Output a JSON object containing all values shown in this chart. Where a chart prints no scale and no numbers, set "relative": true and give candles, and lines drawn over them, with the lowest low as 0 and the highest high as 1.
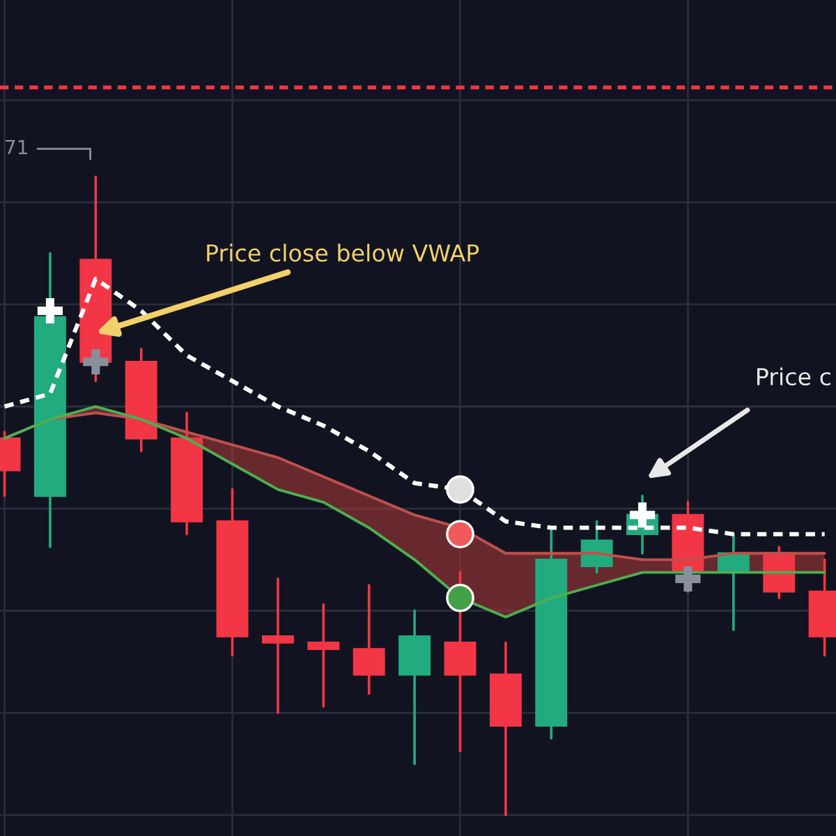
{
  "chart_data": {
    "type": "candlestick",
    "relative": true,
    "grid": true,
    "categories": [
      null,
      null,
      null,
      null,
      null,
      null,
      null,
      null,
      null,
      null,
      null,
      null,
      null,
      null,
      null,
      null,
      null,
      null,
      null
    ],
    "ohlc": [
      [
        0.59,
        0.6,
        0.5,
        0.54
      ],
      [
        0.5,
        0.88,
        0.42,
        0.78
      ],
      [
        0.87,
        1.0,
        0.68,
        0.71
      ],
      [
        0.71,
        0.73,
        0.57,
        0.59
      ],
      [
        0.59,
        0.63,
        0.44,
        0.46
      ],
      [
        0.46,
        0.51,
        0.25,
        0.28
      ],
      [
        0.28,
        0.37,
        0.16,
        0.27
      ],
      [
        0.27,
        0.33,
        0.17,
        0.26
      ],
      [
        0.26,
        0.36,
        0.19,
        0.22
      ],
      [
        0.22,
        0.32,
        0.08,
        0.28
      ],
      [
        0.27,
        0.38,
        0.1,
        0.22
      ],
      [
        0.22,
        0.27,
        0,
        0.14
      ],
      [
        0.14,
        0.45,
        0.12,
        0.4
      ],
      [
        0.39,
        0.46,
        0.38,
        0.43
      ],
      [
        0.44,
        0.5,
        0.41,
        0.47
      ],
      [
        0.47,
        0.49,
        0.35,
        0.38
      ],
      [
        0.38,
        0.44,
        0.29,
        0.41
      ],
      [
        0.41,
        0.42,
        0.34,
        0.35
      ],
      [
        0.35,
        0.4,
        0.25,
        0.28
      ]
    ],
    "colors": [
      "#f23645",
      "#22ab7f",
      "#f23645",
      "#f23645",
      "#f23645",
      "#f23645",
      "#f23645",
      "#f23645",
      "#f23645",
      "#22ab7f",
      "#f23645",
      "#f23645",
      "#22ab7f",
      "#22ab7f",
      "#22ab7f",
      "#f23645",
      "#22ab7f",
      "#f23645",
      "#f23645"
    ],
    "series": [
      {
        "type": "line",
        "color": "#ffffff",
        "line_style": "dashed",
        "values": [
          0.64,
          0.66,
          0.84,
          0.79,
          0.72,
          0.68,
          0.64,
          0.61,
          0.57,
          0.52,
          0.51,
          0.46,
          0.45,
          0.45,
          0.45,
          0.45,
          0.44,
          0.44,
          0.44
        ]
      },
      {
        "type": "line",
        "color": "#c0504d",
        "line_style": "solid",
        "values": [
          0.59,
          0.62,
          0.63,
          0.62,
          0.6,
          0.58,
          0.56,
          0.53,
          0.5,
          0.47,
          0.45,
          0.41,
          0.41,
          0.41,
          0.4,
          0.4,
          0.41,
          0.41,
          0.41
        ]
      },
      {
        "type": "line",
        "color": "#4caf50",
        "line_style": "solid",
        "values": [
          0.59,
          0.62,
          0.64,
          0.62,
          0.59,
          0.55,
          0.51,
          0.49,
          0.45,
          0.4,
          0.34,
          0.31,
          0.34,
          0.36,
          0.38,
          0.38,
          0.38,
          0.38,
          0.38
        ],
        "lower": [
          0.59,
          0.62,
          0.64,
          0.62,
          0.59,
          0.55,
          0.51,
          0.49,
          0.45,
          0.4,
          0.34,
          0.31,
          0.34,
          0.36,
          0.38,
          0.38,
          0.38,
          0.38,
          0.38
        ],
        "upper": [
          0.59,
          0.62,
          0.63,
          0.62,
          0.6,
          0.58,
          0.56,
          0.53,
          0.5,
          0.47,
          0.45,
          0.41,
          0.41,
          0.41,
          0.4,
          0.4,
          0.41,
          0.41,
          0.41
        ]
      },
      {
        "type": "scatter",
        "color": "#e0e0e0",
        "marker": "circle",
        "values": [
          null,
          null,
          null,
          null,
          null,
          null,
          null,
          null,
          null,
          null,
          0.51,
          null,
          null,
          null,
          null,
          null,
          null,
          null,
          null
        ]
      },
      {
        "type": "scatter",
        "color": "#f05a5a",
        "marker": "circle",
        "values": [
          null,
          null,
          null,
          null,
          null,
          null,
          null,
          null,
          null,
          null,
          0.44,
          null,
          null,
          null,
          null,
          null,
          null,
          null,
          null
        ]
      },
      {
        "type": "scatter",
        "color": "#43a047",
        "marker": "circle",
        "values": [
          null,
          null,
          null,
          null,
          null,
          null,
          null,
          null,
          null,
          null,
          0.34,
          null,
          null,
          null,
          null,
          null,
          null,
          null,
          null
        ]
      },
      {
        "type": "scatter",
        "color": "#ffffff",
        "marker": "cross",
        "values": [
          null,
          0.79,
          null,
          null,
          null,
          null,
          null,
          null,
          null,
          null,
          null,
          null,
          null,
          null,
          0.47,
          null,
          null,
          null,
          null
        ]
      },
      {
        "type": "scatter",
        "color": "#8a8f9c",
        "marker": "cross",
        "values": [
          null,
          null,
          0.71,
          null,
          null,
          null,
          null,
          null,
          null,
          null,
          null,
          null,
          null,
          null,
          null,
          0.37,
          null,
          null,
          null
        ]
      }
    ],
    "ref_lines": [
      {
        "axis": "y",
        "value": 1.14,
        "color": "#f23645",
        "line_style": "dashed"
      }
    ],
    "annotations": [
      "Price close below VWAP",
      "Price c",
      "71"
    ]
  }
}
